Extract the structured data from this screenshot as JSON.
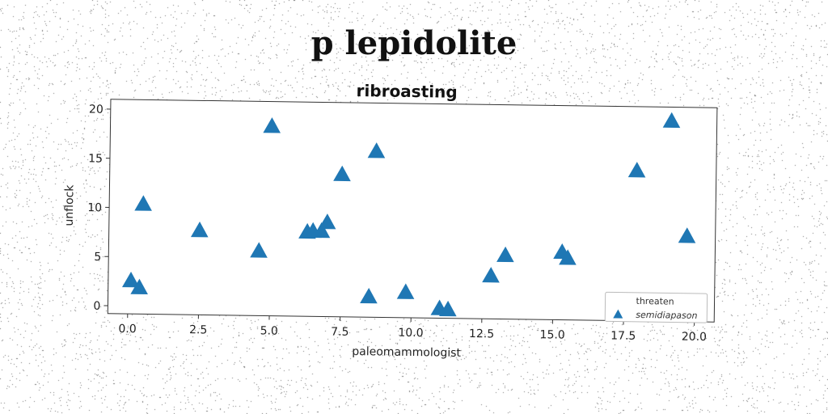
{
  "figure": {
    "suptitle": "p lepidolite"
  },
  "chart_data": {
    "type": "scatter",
    "title": "ribroasting",
    "xlabel": "paleomammologist",
    "ylabel": "unflock",
    "xlim": [
      -0.7,
      20.7
    ],
    "ylim": [
      -0.8,
      21
    ],
    "xticks": [
      0.0,
      2.5,
      5.0,
      7.5,
      10.0,
      12.5,
      15.0,
      17.5,
      20.0
    ],
    "xtick_labels": [
      "0.0",
      "2.5",
      "5.0",
      "7.5",
      "10.0",
      "12.5",
      "15.0",
      "17.5",
      "20.0"
    ],
    "yticks": [
      0,
      5,
      10,
      15,
      20
    ],
    "ytick_labels": [
      "0",
      "5",
      "10",
      "15",
      "20"
    ],
    "grid": false,
    "legend_position": "lower-right",
    "series": [
      {
        "name": "threaten",
        "marker": "none",
        "color": "#1f77b4",
        "x": [],
        "y": []
      },
      {
        "name": "semidiapason",
        "marker": "triangle",
        "color": "#1f77b4",
        "x": [
          0.1,
          0.4,
          0.5,
          2.5,
          4.6,
          5.0,
          6.3,
          6.5,
          6.8,
          7.0,
          7.5,
          8.5,
          8.7,
          9.8,
          11.0,
          11.3,
          12.8,
          13.3,
          15.3,
          15.5,
          17.9,
          19.1,
          19.7
        ],
        "y": [
          2.5,
          1.8,
          10.3,
          7.7,
          5.7,
          18.4,
          7.7,
          7.8,
          7.8,
          8.7,
          13.6,
          1.2,
          16.0,
          1.7,
          0.1,
          0.0,
          3.5,
          5.6,
          6.0,
          5.4,
          14.4,
          19.5,
          7.8
        ]
      }
    ]
  }
}
